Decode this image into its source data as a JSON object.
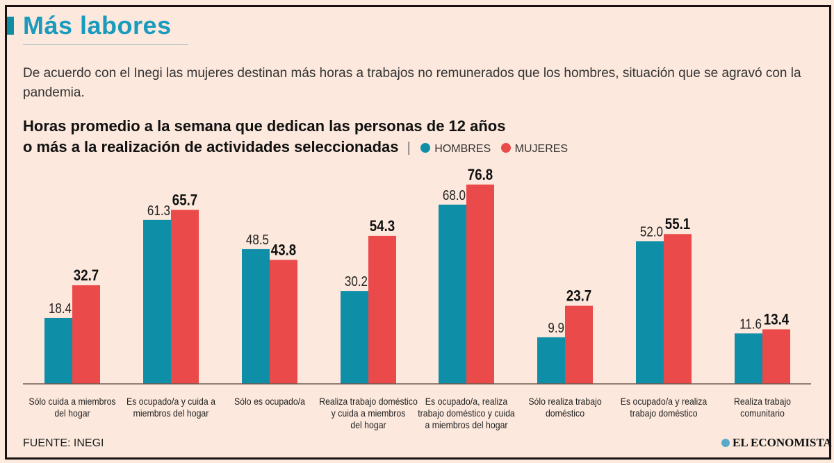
{
  "header": {
    "title": "Más labores",
    "subtitle": "De acuerdo con el Inegi las mujeres destinan más horas a trabajos no remunerados que los hombres, situación que se agravó con la pandemia."
  },
  "colors": {
    "hombres": "#0f8ea8",
    "mujeres": "#ea4a4a",
    "title": "#189bbd"
  },
  "chart_data": {
    "type": "bar",
    "title_line1": "Horas promedio a la semana que dedican las personas de 12 años",
    "title_line2": "o más a la realización de actividades seleccionadas",
    "legend_separator": "|",
    "legend_position": "top-right of title",
    "categories": [
      [
        "Sólo cuida a miembros",
        "del hogar"
      ],
      [
        "Es ocupado/a y cuida a",
        "miembros del hogar"
      ],
      [
        "Sólo es ocupado/a"
      ],
      [
        "Realiza trabajo doméstico",
        "y cuida a miembros",
        "del hogar"
      ],
      [
        "Es ocupado/a, realiza",
        "trabajo doméstico y cuida",
        "a miembros del hogar"
      ],
      [
        "Sólo realiza trabajo",
        "doméstico"
      ],
      [
        "Es ocupado/a y realiza",
        "trabajo doméstico"
      ],
      [
        "Realiza trabajo",
        "comunitario"
      ]
    ],
    "series": [
      {
        "name": "HOMBRES",
        "values": [
          18.4,
          61.3,
          48.5,
          30.2,
          68.0,
          9.9,
          52.0,
          11.6
        ],
        "labels": [
          "18.4",
          "61.3",
          "48.5",
          "30.2",
          "68.0",
          "9.9",
          "52.0",
          "11.6"
        ]
      },
      {
        "name": "MUJERES",
        "values": [
          32.7,
          65.7,
          43.8,
          54.3,
          76.8,
          23.7,
          55.1,
          13.4
        ],
        "labels": [
          "32.7",
          "65.7",
          "43.8",
          "54.3",
          "76.8",
          "23.7",
          "55.1",
          "13.4"
        ]
      }
    ],
    "xlabel": "",
    "ylabel": "",
    "ylim": [
      0,
      80
    ],
    "grid": false
  },
  "footer": {
    "source": "FUENTE: INEGI",
    "brand": "EL ECONOMISTA"
  }
}
